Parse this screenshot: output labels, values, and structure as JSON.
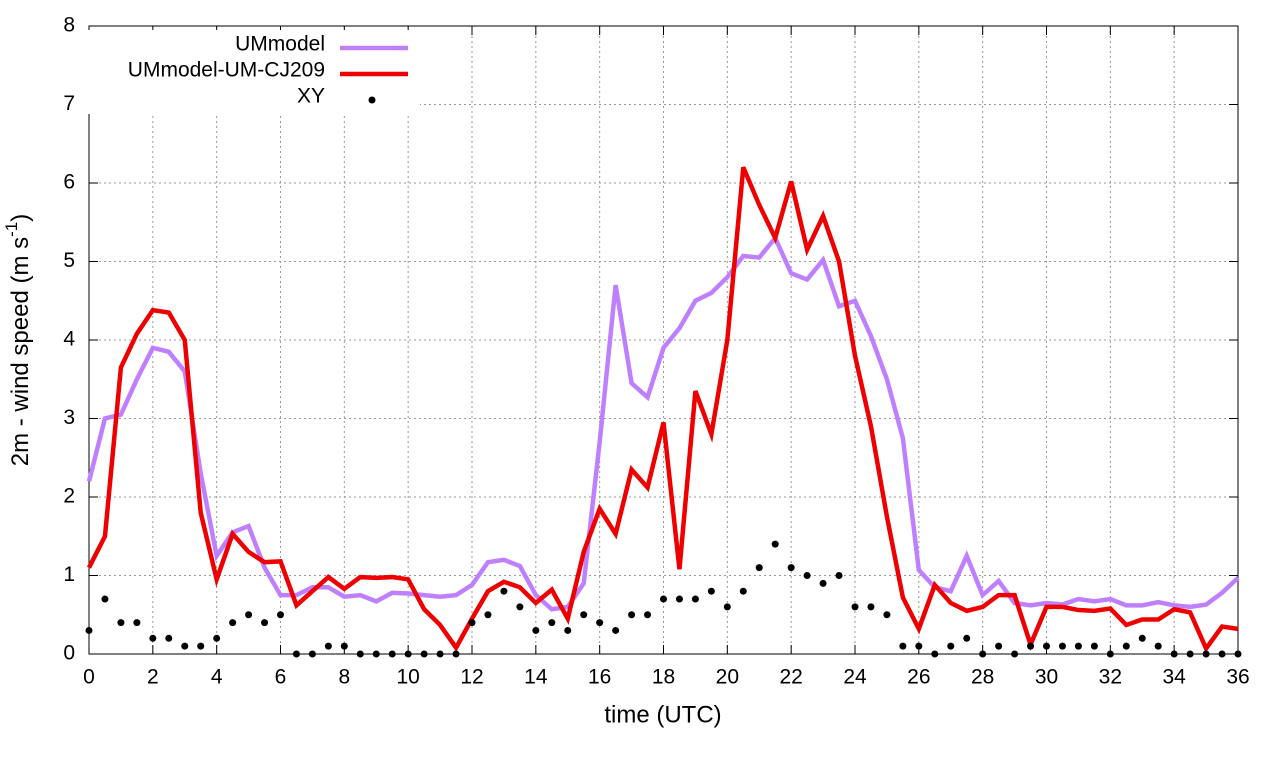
{
  "chart_data": {
    "type": "line",
    "xlabel": "time (UTC)",
    "ylabel": [
      "2m - wind speed  (m s",
      "-1",
      ")"
    ],
    "xlim": [
      0,
      36
    ],
    "ylim": [
      0,
      8
    ],
    "xticks": [
      0,
      2,
      4,
      6,
      8,
      10,
      12,
      14,
      16,
      18,
      20,
      22,
      24,
      26,
      28,
      30,
      32,
      34,
      36
    ],
    "yticks": [
      0,
      1,
      2,
      3,
      4,
      5,
      6,
      7,
      8
    ],
    "grid": true,
    "legend": "top-left",
    "x": [
      0,
      0.5,
      1,
      1.5,
      2,
      2.5,
      3,
      3.5,
      4,
      4.5,
      5,
      5.5,
      6,
      6.5,
      7,
      7.5,
      8,
      8.5,
      9,
      9.5,
      10,
      10.5,
      11,
      11.5,
      12,
      12.5,
      13,
      13.5,
      14,
      14.5,
      15,
      15.5,
      16,
      16.5,
      17,
      17.5,
      18,
      18.5,
      19,
      19.5,
      20,
      20.5,
      21,
      21.5,
      22,
      22.5,
      23,
      23.5,
      24,
      24.5,
      25,
      25.5,
      26,
      26.5,
      27,
      27.5,
      28,
      28.5,
      29,
      29.5,
      30,
      30.5,
      31,
      31.5,
      32,
      32.5,
      33,
      33.5,
      34,
      34.5,
      35,
      35.5,
      36
    ],
    "series": [
      {
        "name": "UMmodel",
        "color": "#bf80ff",
        "style": "line",
        "values": [
          2.2,
          3.0,
          3.05,
          3.5,
          3.9,
          3.85,
          3.6,
          2.3,
          1.25,
          1.55,
          1.63,
          1.1,
          0.75,
          0.75,
          0.85,
          0.85,
          0.73,
          0.75,
          0.67,
          0.78,
          0.77,
          0.75,
          0.73,
          0.75,
          0.88,
          1.17,
          1.2,
          1.12,
          0.75,
          0.57,
          0.6,
          0.9,
          2.7,
          4.7,
          3.45,
          3.27,
          3.9,
          4.15,
          4.5,
          4.6,
          4.8,
          5.07,
          5.05,
          5.3,
          4.85,
          4.77,
          5.02,
          4.43,
          4.5,
          4.05,
          3.5,
          2.75,
          1.07,
          0.85,
          0.8,
          1.25,
          0.75,
          0.93,
          0.65,
          0.62,
          0.65,
          0.63,
          0.7,
          0.67,
          0.7,
          0.62,
          0.62,
          0.66,
          0.62,
          0.6,
          0.63,
          0.78,
          0.97
        ]
      },
      {
        "name": "UMmodel-UM-CJ209",
        "color": "#ee0000",
        "style": "line",
        "values": [
          1.1,
          1.5,
          3.65,
          4.08,
          4.38,
          4.35,
          4.0,
          1.8,
          0.95,
          1.53,
          1.3,
          1.17,
          1.18,
          0.62,
          0.8,
          0.98,
          0.83,
          0.98,
          0.97,
          0.98,
          0.95,
          0.57,
          0.37,
          0.08,
          0.45,
          0.8,
          0.92,
          0.85,
          0.65,
          0.82,
          0.45,
          1.3,
          1.85,
          1.53,
          2.35,
          2.12,
          2.95,
          1.08,
          3.35,
          2.8,
          4.0,
          6.2,
          5.72,
          5.3,
          6.02,
          5.15,
          5.58,
          5.0,
          3.8,
          2.9,
          1.75,
          0.72,
          0.32,
          0.88,
          0.65,
          0.55,
          0.6,
          0.75,
          0.75,
          0.12,
          0.6,
          0.6,
          0.56,
          0.55,
          0.58,
          0.37,
          0.44,
          0.44,
          0.57,
          0.53,
          0.07,
          0.35,
          0.32
        ]
      },
      {
        "name": "XY",
        "color": "#000000",
        "style": "points",
        "values": [
          0.3,
          0.7,
          0.4,
          0.4,
          0.2,
          0.2,
          0.1,
          0.1,
          0.2,
          0.4,
          0.5,
          0.4,
          0.5,
          0,
          0,
          0.1,
          0.1,
          0,
          0,
          0,
          0,
          0,
          0,
          0,
          0.4,
          0.5,
          0.8,
          0.6,
          0.3,
          0.4,
          0.3,
          0.5,
          0.4,
          0.3,
          0.5,
          0.5,
          0.7,
          0.7,
          0.7,
          0.8,
          0.6,
          0.8,
          1.1,
          1.4,
          1.1,
          1.0,
          0.9,
          1.0,
          0.6,
          0.6,
          0.5,
          0.1,
          0.1,
          0,
          0.1,
          0.2,
          0,
          0.1,
          0,
          0.1,
          0.1,
          0.1,
          0.1,
          0.1,
          0,
          0.1,
          0.2,
          0.1,
          0,
          0,
          0,
          0,
          0
        ]
      }
    ]
  }
}
